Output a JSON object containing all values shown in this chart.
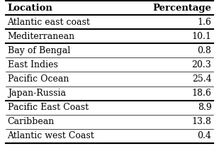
{
  "headers": [
    "Location",
    "Percentage"
  ],
  "rows": [
    [
      "Atlantic east coast",
      "1.6"
    ],
    [
      "Mediterranean",
      "10.1"
    ],
    [
      "Bay of Bengal",
      "0.8"
    ],
    [
      "East Indies",
      "20.3"
    ],
    [
      "Pacific Ocean",
      "25.4"
    ],
    [
      "Japan-Russia",
      "18.6"
    ],
    [
      "Pacific East Coast",
      "8.9"
    ],
    [
      "Caribbean",
      "13.8"
    ],
    [
      "Atlantic west Coast",
      "0.4"
    ]
  ],
  "bg_color": "#ffffff",
  "text_color": "#000000",
  "header_color": "#000000",
  "line_color": "#000000",
  "font_size": 9,
  "header_font_size": 9.5,
  "thick_after": [
    -1,
    0,
    1,
    5,
    8
  ],
  "lw_thick": 1.5,
  "lw_thin": 0.5
}
